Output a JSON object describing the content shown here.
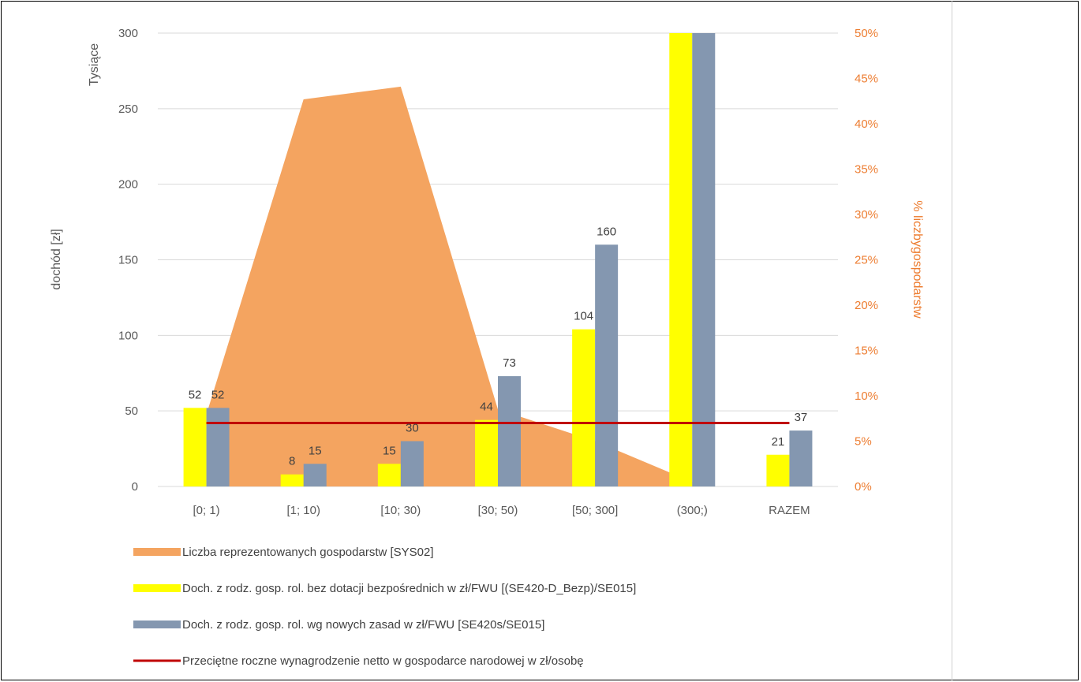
{
  "chart_data": {
    "type": "bar",
    "units_label": "Tysiące",
    "ylabel": "dochód [zł]",
    "y2label": "% liczbygospodarstw",
    "ylim": [
      0,
      300
    ],
    "y2lim": [
      0,
      0.5
    ],
    "yticks": [
      "0",
      "50",
      "100",
      "150",
      "200",
      "250",
      "300"
    ],
    "y2ticks": [
      "0%",
      "5%",
      "10%",
      "15%",
      "20%",
      "25%",
      "30%",
      "35%",
      "40%",
      "45%",
      "50%"
    ],
    "categories": [
      "[0; 1)",
      "[1; 10)",
      "[10; 30)",
      "[30; 50)",
      "[50; 300]",
      "(300;)",
      "RAZEM"
    ],
    "grid": true,
    "legend_position": "bottom",
    "series": [
      {
        "name": "Liczba reprezentowanych gospodarstw [SYS02]",
        "kind": "area",
        "axis": "right",
        "color": "#f4a460",
        "values": [
          0.085,
          0.427,
          0.441,
          0.085,
          0.05,
          0.005,
          null
        ]
      },
      {
        "name": "Doch. z rodz. gosp. rol. bez dotacji bezpośrednich w zł/FWU [(SE420-D_Bezp)/SE015]",
        "kind": "bar",
        "axis": "left",
        "color": "#ffff00",
        "values": [
          52,
          8,
          15,
          44,
          104,
          300,
          21
        ],
        "labels": [
          "52",
          "8",
          "15",
          "44",
          "104",
          "",
          "21"
        ]
      },
      {
        "name": "Doch. z rodz. gosp. rol. wg nowych zasad w zł/FWU [SE420s/SE015]",
        "kind": "bar",
        "axis": "left",
        "color": "#8497b0",
        "values": [
          52,
          15,
          30,
          73,
          160,
          300,
          37
        ],
        "labels": [
          "52",
          "15",
          "30",
          "73",
          "160",
          "",
          "37"
        ]
      },
      {
        "name": "Przeciętne roczne wynagrodzenie netto w gospodarce narodowej w zł/osobę",
        "kind": "line",
        "axis": "left",
        "color": "#c00000",
        "value": 42
      }
    ]
  }
}
